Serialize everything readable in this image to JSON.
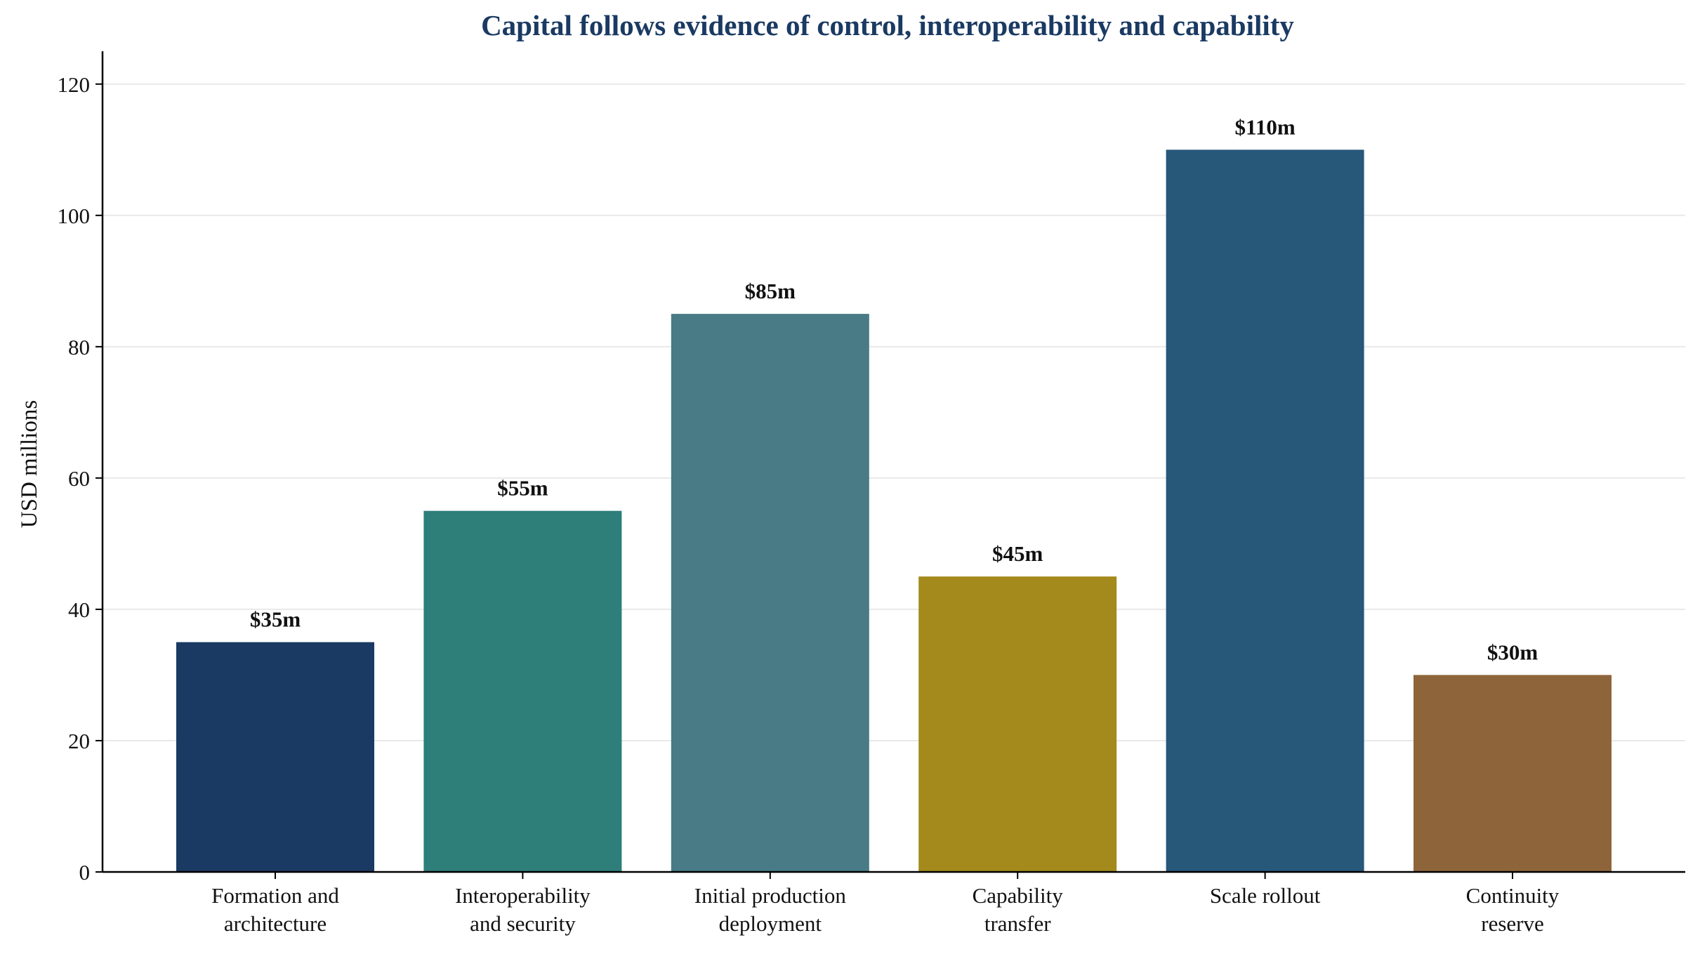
{
  "chart_data": {
    "type": "bar",
    "title": "Capital follows evidence of control, interoperability and capability",
    "xlabel": "",
    "ylabel": "USD millions",
    "ylim": [
      0,
      125
    ],
    "yticks": [
      0,
      20,
      40,
      60,
      80,
      100,
      120
    ],
    "grid": "horizontal",
    "categories": [
      [
        "Formation and",
        "architecture"
      ],
      [
        "Interoperability",
        "and security"
      ],
      [
        "Initial production",
        "deployment"
      ],
      [
        "Capability",
        "transfer"
      ],
      [
        "Scale rollout"
      ],
      [
        "Continuity",
        "reserve"
      ]
    ],
    "values": [
      35,
      55,
      85,
      45,
      110,
      30
    ],
    "value_labels": [
      "$35m",
      "$55m",
      "$85m",
      "$45m",
      "$110m",
      "$30m"
    ],
    "colors": [
      "#1b3a63",
      "#2e7e7a",
      "#487b86",
      "#a48a1c",
      "#275779",
      "#8e653a"
    ]
  }
}
